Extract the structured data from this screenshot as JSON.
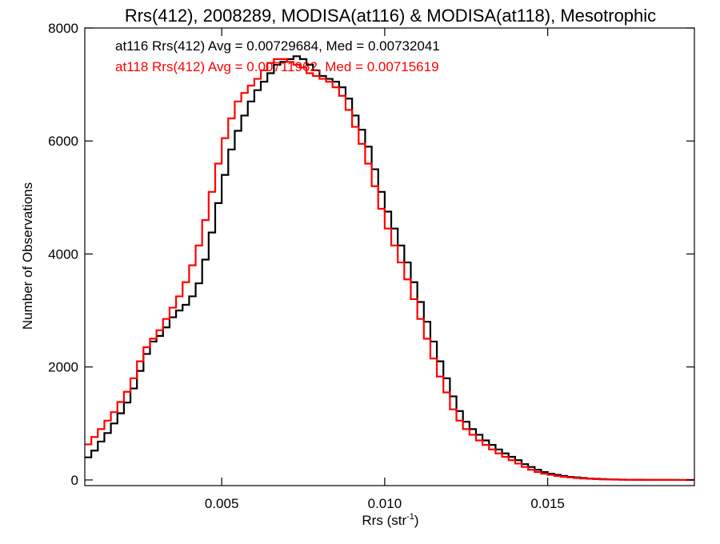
{
  "chart_data": {
    "type": "line",
    "title": "Rrs(412), 2008289, MODISA(at116) & MODISA(at118), Mesotrophic",
    "xlabel": "Rrs (str",
    "xlabel_sup": "-1",
    "xlabel_close": ")",
    "ylabel": "Number of Observations",
    "xlim": [
      0.0008,
      0.0195
    ],
    "ylim": [
      -100,
      8000
    ],
    "xticks": [
      0.005,
      0.01,
      0.015
    ],
    "xtick_labels": [
      "0.005",
      "0.010",
      "0.015"
    ],
    "yticks": [
      0,
      2000,
      4000,
      6000,
      8000
    ],
    "ytick_labels": [
      "0",
      "2000",
      "4000",
      "6000",
      "8000"
    ],
    "grid": false,
    "annotations": [
      {
        "text": "at116 Rrs(412) Avg = 0.00729684, Med = 0.00732041",
        "color": "#000000"
      },
      {
        "text": "at118 Rrs(412) Avg = 0.00711962, Med = 0.00715619",
        "color": "#ff0000"
      }
    ],
    "series": [
      {
        "color": "#000000",
        "x": [
          0.0008,
          0.001,
          0.0012,
          0.0014,
          0.0016,
          0.0018,
          0.002,
          0.0022,
          0.0024,
          0.0026,
          0.0028,
          0.003,
          0.0032,
          0.0034,
          0.0036,
          0.0038,
          0.004,
          0.0042,
          0.0044,
          0.0046,
          0.0048,
          0.005,
          0.0052,
          0.0054,
          0.0056,
          0.0058,
          0.006,
          0.0062,
          0.0064,
          0.0066,
          0.0068,
          0.007,
          0.0072,
          0.0074,
          0.0076,
          0.0078,
          0.008,
          0.0082,
          0.0084,
          0.0086,
          0.0088,
          0.009,
          0.0092,
          0.0094,
          0.0096,
          0.0098,
          0.01,
          0.0102,
          0.0104,
          0.0106,
          0.0108,
          0.011,
          0.0112,
          0.0114,
          0.0116,
          0.0118,
          0.012,
          0.0122,
          0.0124,
          0.0126,
          0.0128,
          0.013,
          0.0132,
          0.0134,
          0.0136,
          0.0138,
          0.014,
          0.0142,
          0.0144,
          0.0146,
          0.0148,
          0.015,
          0.0152,
          0.0154,
          0.0156,
          0.0158,
          0.016,
          0.0162,
          0.0164,
          0.0166,
          0.0168,
          0.017,
          0.0172,
          0.0174,
          0.0176,
          0.0178,
          0.018,
          0.0182,
          0.0184,
          0.0186,
          0.0188,
          0.019,
          0.0192,
          0.0194
        ],
        "values": [
          400,
          520,
          680,
          830,
          1000,
          1180,
          1370,
          1620,
          1930,
          2230,
          2450,
          2550,
          2700,
          2880,
          3000,
          3100,
          3250,
          3480,
          3900,
          4380,
          4900,
          5400,
          5850,
          6180,
          6450,
          6700,
          6900,
          7050,
          7200,
          7350,
          7400,
          7450,
          7500,
          7450,
          7350,
          7250,
          7150,
          7100,
          7050,
          6950,
          6750,
          6450,
          6200,
          5900,
          5500,
          5100,
          4750,
          4450,
          4150,
          3850,
          3500,
          3150,
          2800,
          2450,
          2100,
          1800,
          1480,
          1220,
          1030,
          900,
          800,
          700,
          620,
          540,
          470,
          410,
          350,
          280,
          230,
          180,
          140,
          110,
          90,
          70,
          55,
          45,
          35,
          25,
          20,
          15,
          10,
          8,
          6,
          5,
          4,
          3,
          2,
          2,
          1,
          1,
          1,
          0,
          0,
          0
        ]
      },
      {
        "color": "#ff0000",
        "x": [
          0.0008,
          0.001,
          0.0012,
          0.0014,
          0.0016,
          0.0018,
          0.002,
          0.0022,
          0.0024,
          0.0026,
          0.0028,
          0.003,
          0.0032,
          0.0034,
          0.0036,
          0.0038,
          0.004,
          0.0042,
          0.0044,
          0.0046,
          0.0048,
          0.005,
          0.0052,
          0.0054,
          0.0056,
          0.0058,
          0.006,
          0.0062,
          0.0064,
          0.0066,
          0.0068,
          0.007,
          0.0072,
          0.0074,
          0.0076,
          0.0078,
          0.008,
          0.0082,
          0.0084,
          0.0086,
          0.0088,
          0.009,
          0.0092,
          0.0094,
          0.0096,
          0.0098,
          0.01,
          0.0102,
          0.0104,
          0.0106,
          0.0108,
          0.011,
          0.0112,
          0.0114,
          0.0116,
          0.0118,
          0.012,
          0.0122,
          0.0124,
          0.0126,
          0.0128,
          0.013,
          0.0132,
          0.0134,
          0.0136,
          0.0138,
          0.014,
          0.0142,
          0.0144,
          0.0146,
          0.0148,
          0.015,
          0.0152,
          0.0154,
          0.0156,
          0.0158,
          0.016,
          0.0162,
          0.0164,
          0.0166,
          0.0168,
          0.017,
          0.0172,
          0.0174,
          0.0176,
          0.0178,
          0.018,
          0.0182,
          0.0184,
          0.0186,
          0.0188,
          0.019,
          0.0192,
          0.0194
        ],
        "values": [
          630,
          760,
          900,
          1050,
          1200,
          1380,
          1560,
          1800,
          2100,
          2350,
          2500,
          2650,
          2850,
          3050,
          3250,
          3500,
          3800,
          4150,
          4600,
          5100,
          5600,
          6050,
          6400,
          6700,
          6850,
          6980,
          7100,
          7250,
          7380,
          7450,
          7450,
          7400,
          7350,
          7300,
          7200,
          7150,
          7100,
          7050,
          6950,
          6800,
          6550,
          6250,
          5950,
          5600,
          5200,
          4800,
          4450,
          4150,
          3850,
          3550,
          3200,
          2850,
          2500,
          2150,
          1830,
          1550,
          1250,
          1050,
          900,
          800,
          700,
          620,
          540,
          470,
          410,
          350,
          290,
          230,
          180,
          140,
          110,
          90,
          70,
          55,
          45,
          35,
          25,
          20,
          15,
          10,
          8,
          6,
          5,
          4,
          3,
          2,
          2,
          1,
          1,
          1,
          0,
          0,
          0,
          0
        ]
      }
    ]
  }
}
